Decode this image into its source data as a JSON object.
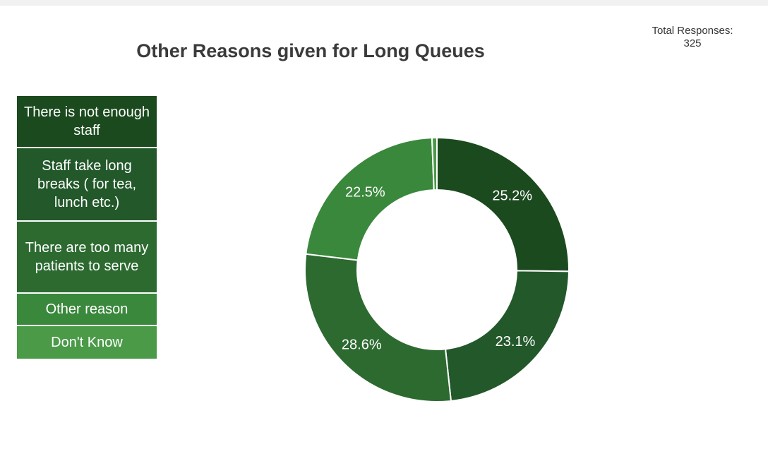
{
  "chart_data": {
    "type": "pie",
    "title": "Other Reasons given for Long Queues",
    "total_label": "Total Responses:",
    "total_value": "325",
    "legend_placement": "left",
    "slices": [
      {
        "label": "There is not enough staff",
        "value": 25.2,
        "display": "25.2%",
        "color": "#1b4a1e"
      },
      {
        "label": "Staff take long breaks ( for tea, lunch etc.)",
        "value": 23.1,
        "display": "23.1%",
        "color": "#22582a"
      },
      {
        "label": "There are too many patients to serve",
        "value": 28.6,
        "display": "28.6%",
        "color": "#2c6a30"
      },
      {
        "label": "Other reason",
        "value": 22.5,
        "display": "22.5%",
        "color": "#3a883c"
      },
      {
        "label": "Don't Know",
        "value": 0.6,
        "display": "",
        "color": "#4a9a48"
      }
    ]
  }
}
